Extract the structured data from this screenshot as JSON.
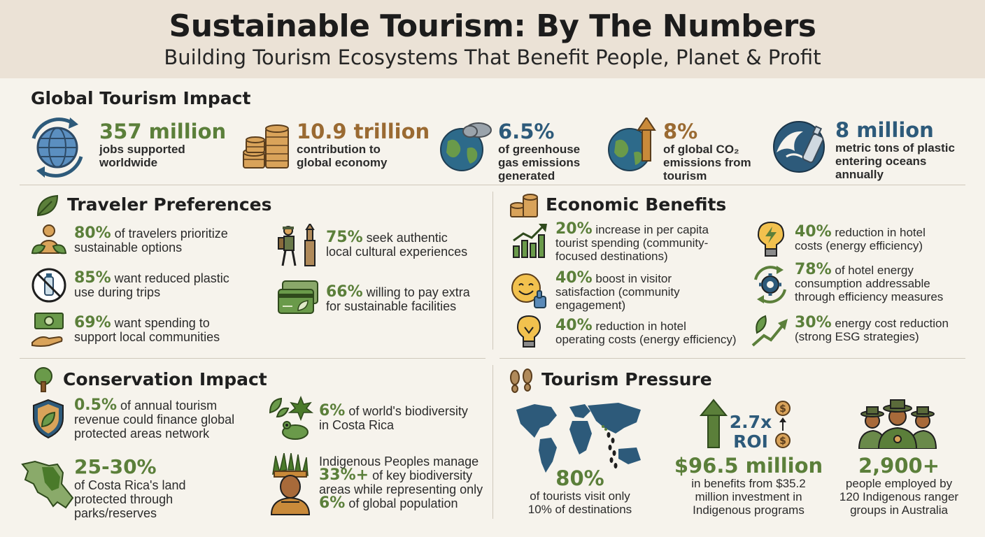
{
  "header": {
    "title": "Sustainable Tourism: By The Numbers",
    "subtitle": "Building Tourism Ecosystems That Benefit People, Planet & Profit"
  },
  "global": {
    "title": "Global Tourism Impact",
    "stats": [
      {
        "value": "357 million",
        "desc1": "jobs supported",
        "desc2": "worldwide",
        "desc3": ""
      },
      {
        "value": "10.9 trillion",
        "desc1": "contribution to",
        "desc2": "global economy",
        "desc3": ""
      },
      {
        "value": "6.5%",
        "desc1": "of greenhouse",
        "desc2": "gas emissions",
        "desc3": "generated"
      },
      {
        "value": "8%",
        "desc1": "of global CO₂",
        "desc2": "emissions from",
        "desc3": "tourism"
      },
      {
        "value": "8 million",
        "desc1": "metric tons of plastic",
        "desc2": "entering oceans",
        "desc3": "annually"
      }
    ]
  },
  "traveler": {
    "title": "Traveler Preferences",
    "items": [
      {
        "pct": "80%",
        "text1": " of travelers prioritize",
        "text2": "sustainable options"
      },
      {
        "pct": "85%",
        "text1": " want reduced plastic",
        "text2": "use during trips"
      },
      {
        "pct": "69%",
        "text1": " want spending to",
        "text2": "support local communities"
      },
      {
        "pct": "75%",
        "text1": " seek authentic",
        "text2": "local cultural experiences"
      },
      {
        "pct": "66%",
        "text1": " willing to pay extra",
        "text2": "for sustainable facilities"
      }
    ]
  },
  "economic": {
    "title": "Economic Benefits",
    "items": [
      {
        "pct": "20%",
        "text1": " increase in per capita",
        "text2": "tourist spending (community-",
        "text3": "focused destinations)"
      },
      {
        "pct": "40%",
        "text1": " boost in visitor",
        "text2": "satisfaction (community",
        "text3": "engagement)"
      },
      {
        "pct": "40%",
        "text1": " reduction in hotel",
        "text2": "operating costs (energy efficiency)",
        "text3": ""
      },
      {
        "pct": "40%",
        "text1": " reduction in hotel",
        "text2": "costs (energy efficiency)",
        "text3": ""
      },
      {
        "pct": "78%",
        "text1": " of hotel energy",
        "text2": "consumption addressable",
        "text3": "through efficiency measures"
      },
      {
        "pct": "30%",
        "text1": " energy cost reduction",
        "text2": "(strong ESG strategies)",
        "text3": ""
      }
    ]
  },
  "conservation": {
    "title": "Conservation Impact",
    "items": [
      {
        "pct": "0.5%",
        "text1": " of annual tourism",
        "text2": "revenue could finance global",
        "text3": "protected areas network"
      },
      {
        "pct": "25-30%",
        "text1": "of Costa Rica's land",
        "text2": "protected through",
        "text3": "parks/reserves"
      },
      {
        "pct": "6%",
        "text1": " of world's biodiversity",
        "text2": "in Costa Rica",
        "text3": ""
      }
    ],
    "indigenous": {
      "line1": "Indigenous Peoples manage",
      "pct1": "33%+",
      "line2": " of key biodiversity",
      "line3": "areas while representing only",
      "pct2": "6%",
      "line4": " of global population"
    }
  },
  "pressure": {
    "title": "Tourism Pressure",
    "map_stat": {
      "value": "80%",
      "desc1": "of tourists visit only",
      "desc2": "10% of destinations"
    },
    "roi": {
      "multiplier": "2.7x",
      "label": "ROI",
      "value": "$96.5 million",
      "desc1": "in benefits from $35.2",
      "desc2": "million investment in",
      "desc3": "Indigenous programs"
    },
    "rangers": {
      "value": "2,900+",
      "desc1": "people employed by",
      "desc2": "120 Indigenous ranger",
      "desc3": "groups in Australia"
    }
  },
  "colors": {
    "green": "#5b7f3a",
    "brown": "#9a6a32",
    "blue": "#2d5a7a",
    "header_bg": "#ebe2d6",
    "page_bg": "#f6f3ec"
  }
}
